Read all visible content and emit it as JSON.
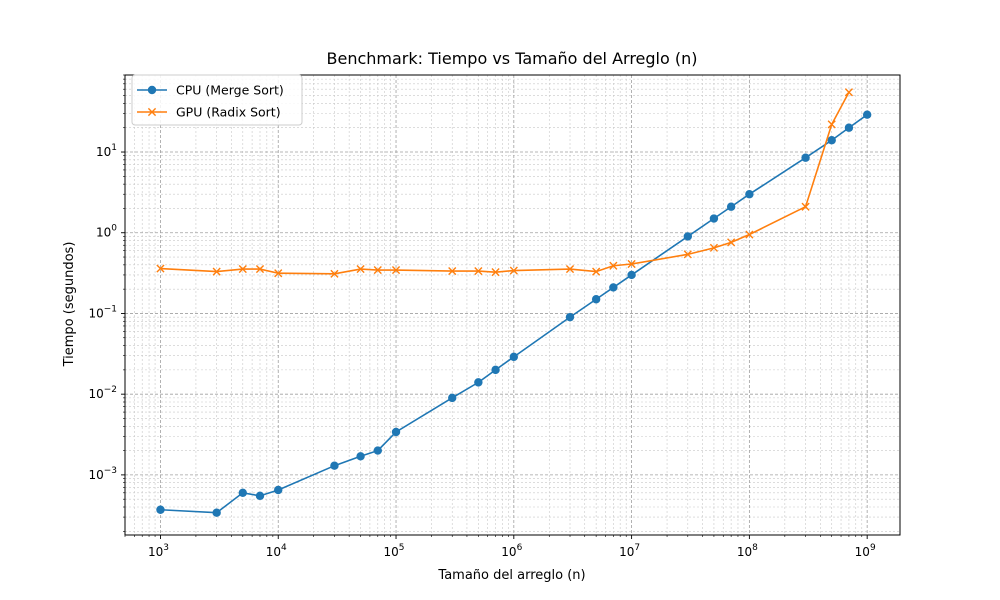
{
  "chart_data": {
    "type": "line",
    "title": "Benchmark: Tiempo vs Tamaño del Arreglo (n)",
    "xlabel": "Tamaño del arreglo (n)",
    "ylabel": "Tiempo (segundos)",
    "xscale": "log",
    "yscale": "log",
    "xlim": [
      500,
      1900000000
    ],
    "ylim": [
      0.00018,
      90
    ],
    "x_ticks": [
      {
        "value": 1000,
        "label": "10",
        "exp": "3"
      },
      {
        "value": 10000,
        "label": "10",
        "exp": "4"
      },
      {
        "value": 100000,
        "label": "10",
        "exp": "5"
      },
      {
        "value": 1000000,
        "label": "10",
        "exp": "6"
      },
      {
        "value": 10000000,
        "label": "10",
        "exp": "7"
      },
      {
        "value": 100000000,
        "label": "10",
        "exp": "8"
      },
      {
        "value": 1000000000,
        "label": "10",
        "exp": "9"
      }
    ],
    "y_ticks": [
      {
        "value": 0.001,
        "label": "10",
        "exp": "−3"
      },
      {
        "value": 0.01,
        "label": "10",
        "exp": "−2"
      },
      {
        "value": 0.1,
        "label": "10",
        "exp": "−1"
      },
      {
        "value": 1,
        "label": "10",
        "exp": "0"
      },
      {
        "value": 10,
        "label": "10",
        "exp": "1"
      }
    ],
    "grid": true,
    "legend_position": "top-left",
    "series": [
      {
        "name": "CPU (Merge Sort)",
        "color": "#1f77b4",
        "marker": "circle",
        "x": [
          1000,
          3000,
          5000,
          7000,
          10000,
          30000,
          50000,
          70000,
          100000,
          300000,
          500000,
          700000,
          1000000,
          3000000,
          5000000,
          7000000,
          10000000,
          30000000,
          50000000,
          70000000,
          100000000,
          300000000,
          500000000,
          700000000,
          1000000000
        ],
        "values": [
          0.00037,
          0.00034,
          0.0006,
          0.00055,
          0.00065,
          0.0013,
          0.0017,
          0.002,
          0.0034,
          0.009,
          0.014,
          0.02,
          0.029,
          0.09,
          0.15,
          0.21,
          0.3,
          0.9,
          1.5,
          2.1,
          3.0,
          8.5,
          14,
          20,
          29
        ]
      },
      {
        "name": "GPU (Radix Sort)",
        "color": "#ff7f0e",
        "marker": "x",
        "x": [
          1000,
          3000,
          5000,
          7000,
          10000,
          30000,
          50000,
          70000,
          100000,
          300000,
          500000,
          700000,
          1000000,
          3000000,
          5000000,
          7000000,
          10000000,
          30000000,
          50000000,
          70000000,
          100000000,
          300000000,
          500000000,
          700000000
        ],
        "values": [
          0.36,
          0.33,
          0.355,
          0.355,
          0.315,
          0.31,
          0.355,
          0.345,
          0.345,
          0.335,
          0.335,
          0.325,
          0.34,
          0.355,
          0.33,
          0.39,
          0.41,
          0.54,
          0.65,
          0.76,
          0.95,
          2.1,
          22,
          55
        ]
      }
    ]
  }
}
